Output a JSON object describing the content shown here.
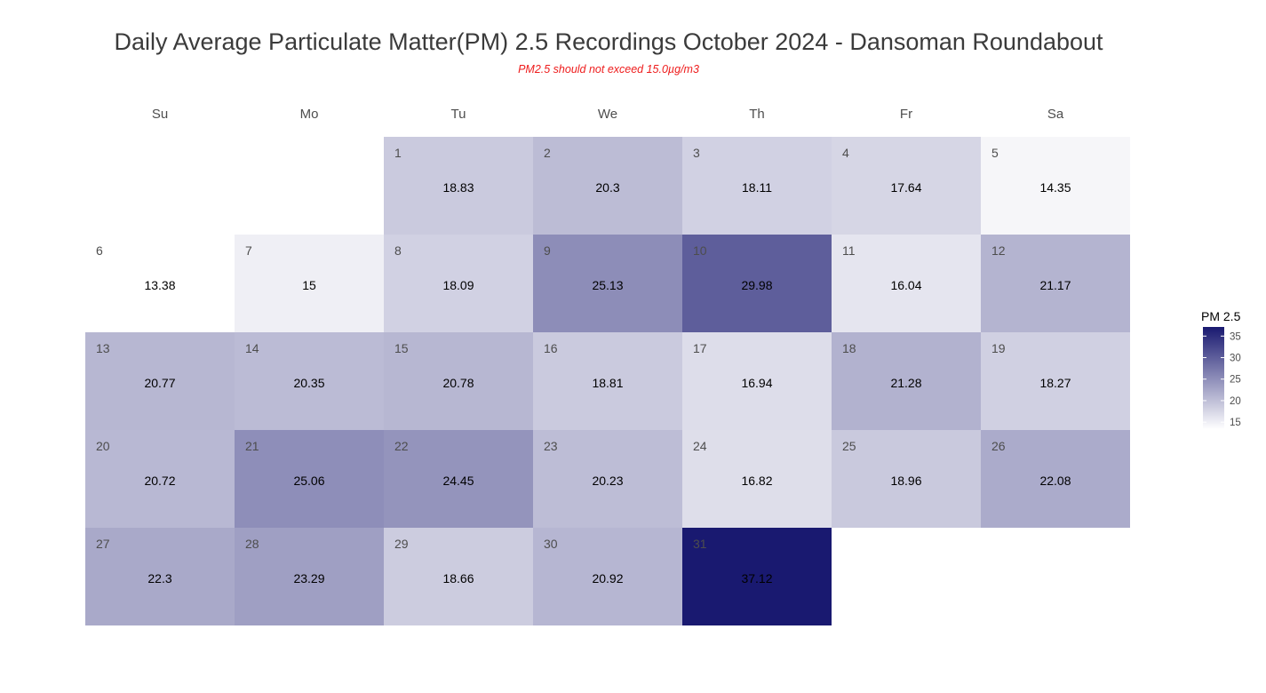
{
  "chart_data": {
    "type": "heatmap",
    "title": "Daily Average Particulate Matter(PM) 2.5 Recordings October 2024 -  Dansoman Roundabout",
    "subtitle": "PM2.5 should not exceed 15.0µg/m3",
    "weekdays": [
      "Su",
      "Mo",
      "Tu",
      "We",
      "Th",
      "Fr",
      "Sa"
    ],
    "first_weekday_index": 2,
    "days": [
      1,
      2,
      3,
      4,
      5,
      6,
      7,
      8,
      9,
      10,
      11,
      12,
      13,
      14,
      15,
      16,
      17,
      18,
      19,
      20,
      21,
      22,
      23,
      24,
      25,
      26,
      27,
      28,
      29,
      30,
      31
    ],
    "values": [
      18.83,
      20.3,
      18.11,
      17.64,
      14.35,
      13.38,
      15,
      18.09,
      25.13,
      29.98,
      16.04,
      21.17,
      20.77,
      20.35,
      20.78,
      18.81,
      16.94,
      21.28,
      18.27,
      20.72,
      25.06,
      24.45,
      20.23,
      16.82,
      18.96,
      22.08,
      22.3,
      23.29,
      18.66,
      20.92,
      37.12
    ],
    "legend": {
      "title": "PM 2.5",
      "ticks": [
        15,
        20,
        25,
        30,
        35
      ],
      "placement": "right"
    },
    "color_scale": {
      "min": 13.38,
      "max": 37.12,
      "low_color": "#ffffff",
      "high_color": "#191970"
    },
    "grid": false
  }
}
